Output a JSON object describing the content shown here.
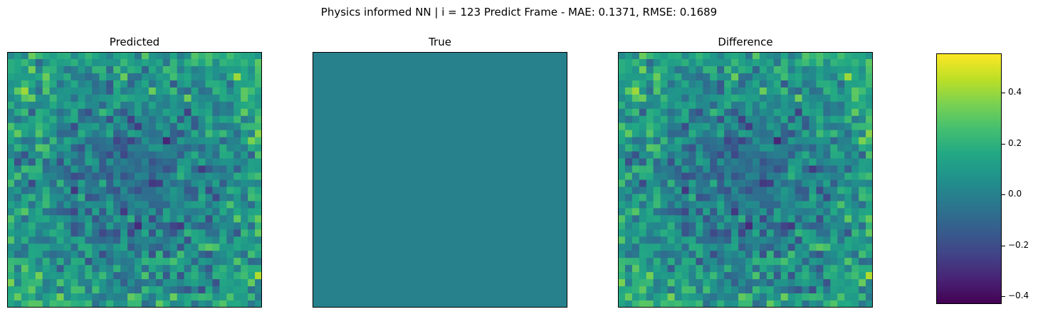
{
  "suptitle": "Physics informed NN | i = 123 Predict Frame - MAE: 0.1371, RMSE: 0.1689",
  "chart_data": {
    "type": "heatmap",
    "colormap": "viridis",
    "grid_size": [
      36,
      36
    ],
    "panels": [
      {
        "id": "predicted",
        "title": "Predicted",
        "mode": "noise",
        "seed": 123
      },
      {
        "id": "true",
        "title": "True",
        "mode": "constant",
        "value": 0.0
      },
      {
        "id": "difference",
        "title": "Difference",
        "mode": "noise",
        "seed": 123
      }
    ],
    "colorbar": {
      "vmin": -0.43,
      "vmax": 0.555,
      "ticks": [
        -0.4,
        -0.2,
        0.0,
        0.2,
        0.4
      ],
      "tick_labels": [
        "−0.4",
        "−0.2",
        "0.0",
        "0.2",
        "0.4"
      ]
    },
    "axes": {
      "xticks": [],
      "yticks": []
    }
  }
}
